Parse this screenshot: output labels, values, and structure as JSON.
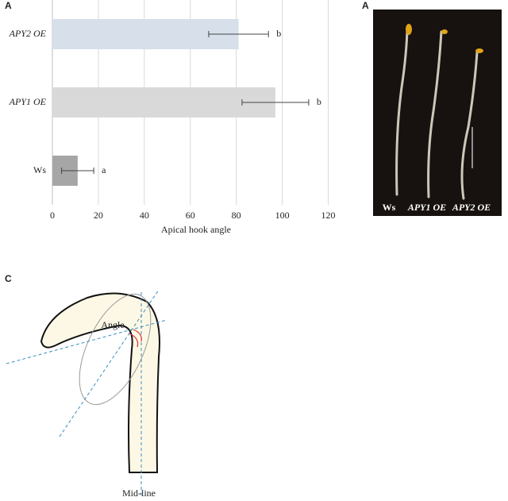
{
  "chart_data": {
    "type": "bar",
    "orientation": "horizontal",
    "panel_label": "A",
    "categories": [
      "APY2 OE",
      "APY1 OE",
      "Ws"
    ],
    "category_italic": [
      true,
      true,
      false
    ],
    "values": [
      81,
      97,
      11
    ],
    "errors": [
      13,
      14.5,
      7
    ],
    "significance": [
      "b",
      "b",
      "a"
    ],
    "colors": [
      "#d6dfea",
      "#d9d9d9",
      "#a6a6a6"
    ],
    "x_label": "Apical hook angle",
    "xlim": [
      0,
      125
    ],
    "xticks": [
      0,
      20,
      40,
      60,
      80,
      100,
      120
    ],
    "grid": true
  },
  "photo": {
    "panel_label": "A",
    "labels": [
      "Ws",
      "APY1 OE",
      "APY2 OE"
    ]
  },
  "diagram": {
    "panel_label": "C",
    "angle_label": "Angle",
    "midline_label": "Mid-line"
  }
}
